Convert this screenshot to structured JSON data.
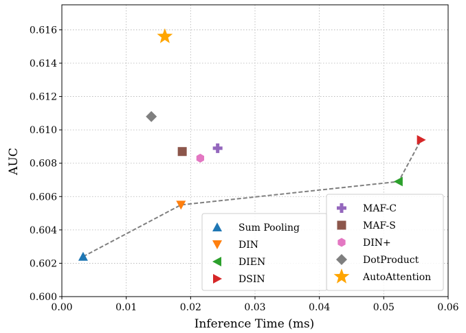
{
  "chart_data": {
    "type": "scatter",
    "xlabel": "Inference Time (ms)",
    "ylabel": "AUC",
    "xlim": [
      0.0,
      0.06
    ],
    "ylim": [
      0.6,
      0.6175
    ],
    "x_ticks": [
      0.0,
      0.01,
      0.02,
      0.03,
      0.04,
      0.05,
      0.06
    ],
    "x_tick_labels": [
      "0.00",
      "0.01",
      "0.02",
      "0.03",
      "0.04",
      "0.05",
      "0.06"
    ],
    "y_ticks": [
      0.6,
      0.602,
      0.604,
      0.606,
      0.608,
      0.61,
      0.612,
      0.614,
      0.616
    ],
    "y_tick_labels": [
      "0.600",
      "0.602",
      "0.604",
      "0.606",
      "0.608",
      "0.610",
      "0.612",
      "0.614",
      "0.616"
    ],
    "grid": true,
    "series": [
      {
        "name": "Sum Pooling",
        "x": 0.0033,
        "y": 0.6024,
        "marker": "triangle-up",
        "color": "#1f77b4"
      },
      {
        "name": "DIN",
        "x": 0.0185,
        "y": 0.6055,
        "marker": "triangle-down",
        "color": "#ff7f0e"
      },
      {
        "name": "DIEN",
        "x": 0.0523,
        "y": 0.6069,
        "marker": "triangle-left",
        "color": "#2ca02c"
      },
      {
        "name": "DSIN",
        "x": 0.0558,
        "y": 0.6094,
        "marker": "triangle-right",
        "color": "#d62728"
      },
      {
        "name": "MAF-C",
        "x": 0.0242,
        "y": 0.6089,
        "marker": "plus",
        "color": "#9467bd"
      },
      {
        "name": "MAF-S",
        "x": 0.0187,
        "y": 0.6087,
        "marker": "square",
        "color": "#8c564b"
      },
      {
        "name": "DIN+",
        "x": 0.0215,
        "y": 0.6083,
        "marker": "hexagon",
        "color": "#e377c2"
      },
      {
        "name": "DotProduct",
        "x": 0.0139,
        "y": 0.6108,
        "marker": "diamond",
        "color": "#7f7f7f"
      },
      {
        "name": "AutoAttention",
        "x": 0.016,
        "y": 0.6156,
        "marker": "star",
        "color": "#ffa500"
      }
    ],
    "connected_line": {
      "series_order": [
        "Sum Pooling",
        "DIN",
        "DIEN",
        "DSIN"
      ],
      "style": "dashed",
      "color": "#7f7f7f"
    },
    "legends": [
      {
        "placement": "lower-center",
        "entries": [
          "Sum Pooling",
          "DIN",
          "DIEN",
          "DSIN"
        ]
      },
      {
        "placement": "lower-right",
        "entries": [
          "MAF-C",
          "MAF-S",
          "DIN+",
          "DotProduct",
          "AutoAttention"
        ]
      }
    ]
  }
}
